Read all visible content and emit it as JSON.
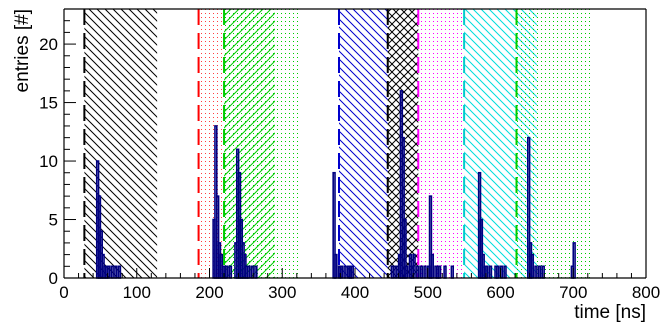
{
  "chart_data": {
    "type": "bar",
    "xlabel": "time [ns]",
    "ylabel": "entries  [#]",
    "xlim": [
      0,
      800
    ],
    "ylim": [
      0,
      23
    ],
    "x_ticks": [
      0,
      100,
      200,
      300,
      400,
      500,
      600,
      700,
      800
    ],
    "y_ticks": [
      0,
      5,
      10,
      15,
      20
    ],
    "grid": false,
    "legend": "none",
    "bin_width_ns": 2.5,
    "shaded_windows": [
      {
        "start": 28,
        "end": 128,
        "color": "#000000",
        "pattern": "hatch-down"
      },
      {
        "start": 185,
        "end": 220,
        "color": "#ff4040",
        "pattern": "dots"
      },
      {
        "start": 220,
        "end": 290,
        "color": "#00cc00",
        "pattern": "hatch-up"
      },
      {
        "start": 220,
        "end": 322,
        "color": "#00cc00",
        "pattern": "dots"
      },
      {
        "start": 378,
        "end": 445,
        "color": "#0000cc",
        "pattern": "hatch-down"
      },
      {
        "start": 445,
        "end": 487,
        "color": "#000000",
        "pattern": "crosshatch"
      },
      {
        "start": 487,
        "end": 550,
        "color": "#ff00ff",
        "pattern": "dots"
      },
      {
        "start": 550,
        "end": 650,
        "color": "#00dddd",
        "pattern": "hatch-down"
      },
      {
        "start": 622,
        "end": 725,
        "color": "#00cc00",
        "pattern": "dots"
      }
    ],
    "window_lines": [
      {
        "x": 28,
        "color": "#000000"
      },
      {
        "x": 185,
        "color": "#ff0000"
      },
      {
        "x": 220,
        "color": "#00cc00"
      },
      {
        "x": 378,
        "color": "#0000cc"
      },
      {
        "x": 445,
        "color": "#000000"
      },
      {
        "x": 487,
        "color": "#ff00ff"
      },
      {
        "x": 550,
        "color": "#00cccc"
      },
      {
        "x": 622,
        "color": "#00cc00"
      }
    ],
    "series": [
      {
        "color": "#000080",
        "points": [
          [
            45,
            10
          ],
          [
            47.5,
            7
          ],
          [
            50,
            4
          ],
          [
            52.5,
            2
          ],
          [
            55,
            1
          ],
          [
            57.5,
            1
          ],
          [
            60,
            1
          ],
          [
            65,
            1
          ],
          [
            70,
            1
          ],
          [
            75,
            1
          ],
          [
            205,
            5
          ],
          [
            207.5,
            13
          ],
          [
            210,
            7
          ],
          [
            212.5,
            3
          ],
          [
            215,
            2
          ],
          [
            217.5,
            1
          ],
          [
            220,
            1
          ],
          [
            222.5,
            1
          ],
          [
            227.5,
            1
          ],
          [
            235,
            3
          ],
          [
            237.5,
            11
          ],
          [
            240,
            9
          ],
          [
            242.5,
            5
          ],
          [
            245,
            3
          ],
          [
            247.5,
            2
          ],
          [
            250,
            1
          ],
          [
            252.5,
            1
          ],
          [
            257.5,
            1
          ],
          [
            262.5,
            1
          ],
          [
            370,
            9
          ],
          [
            372.5,
            2
          ],
          [
            377.5,
            1
          ],
          [
            380,
            1
          ],
          [
            385,
            1
          ],
          [
            390,
            1
          ],
          [
            392.5,
            1
          ],
          [
            395,
            1
          ],
          [
            450,
            1
          ],
          [
            455,
            1
          ],
          [
            460,
            2
          ],
          [
            462.5,
            16
          ],
          [
            465,
            12
          ],
          [
            467.5,
            5
          ],
          [
            470,
            1
          ],
          [
            475,
            2
          ],
          [
            477.5,
            1
          ],
          [
            480,
            2
          ],
          [
            485,
            1
          ],
          [
            490,
            1
          ],
          [
            495,
            1
          ],
          [
            500,
            1
          ],
          [
            502.5,
            7
          ],
          [
            505,
            2
          ],
          [
            510,
            1
          ],
          [
            512.5,
            1
          ],
          [
            515,
            1
          ],
          [
            522.5,
            1
          ],
          [
            532.5,
            1
          ],
          [
            570,
            9
          ],
          [
            572.5,
            5
          ],
          [
            575,
            2
          ],
          [
            577.5,
            1
          ],
          [
            580,
            1
          ],
          [
            585,
            1
          ],
          [
            592.5,
            1
          ],
          [
            595,
            1
          ],
          [
            600,
            1
          ],
          [
            605,
            1
          ],
          [
            637.5,
            12
          ],
          [
            640,
            3
          ],
          [
            642.5,
            2
          ],
          [
            647.5,
            1
          ],
          [
            652.5,
            1
          ],
          [
            657.5,
            1
          ],
          [
            697.5,
            1
          ],
          [
            700,
            3
          ]
        ]
      }
    ]
  }
}
